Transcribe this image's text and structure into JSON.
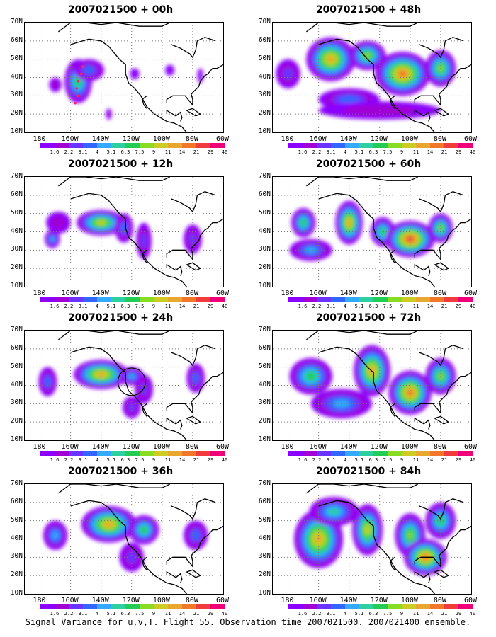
{
  "chart_data": {
    "type": "heatmap",
    "colorbar": {
      "labels": [
        "1.6",
        "2.2",
        "3.1",
        "4",
        "5.1",
        "6.3",
        "7.5",
        "9",
        "11",
        "14",
        "21",
        "29",
        "40"
      ],
      "colors": [
        "#8b00ff",
        "#a000d4",
        "#6a33ff",
        "#3366ff",
        "#33aaff",
        "#2ecfa0",
        "#22cc55",
        "#88dd22",
        "#cccc22",
        "#e8a830",
        "#f07828",
        "#f03c3c",
        "#f00078"
      ]
    },
    "axes": {
      "x_ticks": [
        "180",
        "160W",
        "140W",
        "120W",
        "100W",
        "80W",
        "60W"
      ],
      "y_ticks": [
        "70N",
        "60N",
        "50N",
        "40N",
        "30N",
        "20N",
        "10N"
      ],
      "xlim": [
        "170E",
        "60W"
      ],
      "ylim": [
        "10N",
        "70N"
      ],
      "grid": "dotted"
    },
    "panels": [
      {
        "title": "2007021500 + 00h",
        "maxima": [
          {
            "lon": -155,
            "lat": 38,
            "level": 6
          },
          {
            "lon": -150,
            "lat": 45,
            "level": 3
          }
        ]
      },
      {
        "title": "2007021500 + 48h",
        "maxima": [
          {
            "lon": -152,
            "lat": 52,
            "level": 10
          },
          {
            "lon": -105,
            "lat": 43,
            "level": 11
          }
        ]
      },
      {
        "title": "2007021500 + 12h",
        "maxima": [
          {
            "lon": -140,
            "lat": 45,
            "level": 9
          }
        ]
      },
      {
        "title": "2007021500 + 60h",
        "maxima": [
          {
            "lon": -140,
            "lat": 45,
            "level": 10
          },
          {
            "lon": -100,
            "lat": 38,
            "level": 12
          }
        ]
      },
      {
        "title": "2007021500 + 24h",
        "maxima": [
          {
            "lon": -140,
            "lat": 47,
            "level": 10
          }
        ]
      },
      {
        "title": "2007021500 + 72h",
        "maxima": [
          {
            "lon": -125,
            "lat": 50,
            "level": 10
          },
          {
            "lon": -98,
            "lat": 36,
            "level": 11
          }
        ]
      },
      {
        "title": "2007021500 + 36h",
        "maxima": [
          {
            "lon": -135,
            "lat": 48,
            "level": 10
          }
        ]
      },
      {
        "title": "2007021500 + 84h",
        "maxima": [
          {
            "lon": -155,
            "lat": 40,
            "level": 10
          },
          {
            "lon": -95,
            "lat": 30,
            "level": 11
          }
        ]
      }
    ]
  },
  "footer": "Signal Variance for u,v,T. Flight 55. Observation time 2007021500. 2007021400 ensemble."
}
